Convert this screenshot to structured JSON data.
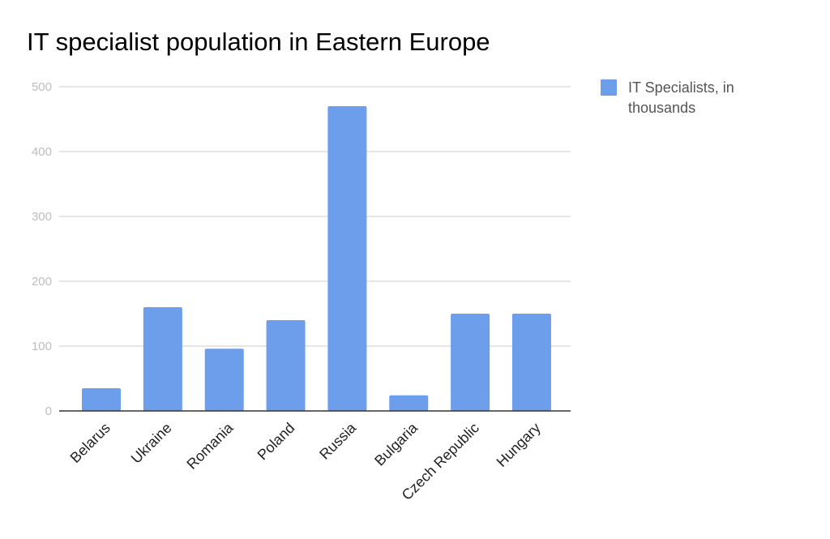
{
  "chart_data": {
    "type": "bar",
    "title": "IT specialist population in Eastern Europe",
    "xlabel": "",
    "ylabel": "",
    "categories": [
      "Belarus",
      "Ukraine",
      "Romania",
      "Poland",
      "Russia",
      "Bulgaria",
      "Czech Republic",
      "Hungary"
    ],
    "series": [
      {
        "name": "IT Specialists, in thousands",
        "legend_lines": [
          "IT Specialists, in",
          "thousands"
        ],
        "values": [
          35,
          160,
          96,
          140,
          470,
          24,
          150,
          150
        ],
        "color": "#6d9eeb"
      }
    ],
    "ylim": [
      0,
      500
    ],
    "yticks": [
      0,
      100,
      200,
      300,
      400,
      500
    ],
    "ytick_labels": [
      "0",
      "100",
      "200",
      "300",
      "400",
      "500"
    ],
    "grid": true,
    "legend_position": "top-right"
  }
}
